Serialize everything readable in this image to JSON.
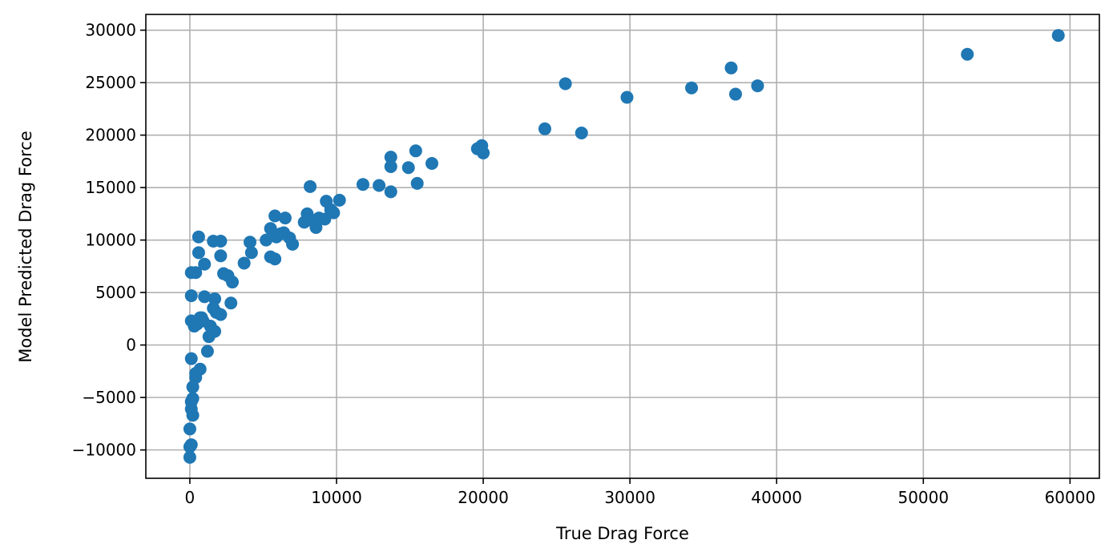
{
  "chart_data": {
    "type": "scatter",
    "xlabel": "True Drag Force",
    "ylabel": "Model Predicted Drag Force",
    "xlim": [
      -3000,
      62000
    ],
    "ylim": [
      -12700,
      31500
    ],
    "x_ticks": [
      0,
      10000,
      20000,
      30000,
      40000,
      50000,
      60000
    ],
    "y_ticks": [
      -10000,
      -5000,
      0,
      5000,
      10000,
      15000,
      20000,
      25000,
      30000
    ],
    "grid": true,
    "marker_color": "#1f77b4",
    "points": [
      [
        59200,
        29500
      ],
      [
        53000,
        27700
      ],
      [
        36900,
        26400
      ],
      [
        38700,
        24700
      ],
      [
        37200,
        23900
      ],
      [
        34200,
        24500
      ],
      [
        29800,
        23600
      ],
      [
        25600,
        24900
      ],
      [
        26700,
        20200
      ],
      [
        24200,
        20600
      ],
      [
        19900,
        19000
      ],
      [
        19600,
        18700
      ],
      [
        20000,
        18300
      ],
      [
        15400,
        18500
      ],
      [
        13700,
        17900
      ],
      [
        13700,
        17000
      ],
      [
        14900,
        16900
      ],
      [
        16500,
        17300
      ],
      [
        15500,
        15400
      ],
      [
        13700,
        14600
      ],
      [
        12900,
        15200
      ],
      [
        11800,
        15300
      ],
      [
        10200,
        13800
      ],
      [
        9800,
        12600
      ],
      [
        9300,
        13700
      ],
      [
        9600,
        12900
      ],
      [
        9200,
        12000
      ],
      [
        8800,
        12100
      ],
      [
        8600,
        11200
      ],
      [
        8300,
        11900
      ],
      [
        8000,
        12500
      ],
      [
        7800,
        11700
      ],
      [
        8200,
        15100
      ],
      [
        7000,
        9600
      ],
      [
        6800,
        10200
      ],
      [
        6500,
        12100
      ],
      [
        6400,
        10700
      ],
      [
        5800,
        12300
      ],
      [
        5500,
        11100
      ],
      [
        5900,
        10300
      ],
      [
        6200,
        10600
      ],
      [
        5800,
        8200
      ],
      [
        5500,
        8400
      ],
      [
        5200,
        10000
      ],
      [
        4200,
        8800
      ],
      [
        4100,
        9800
      ],
      [
        3700,
        7800
      ],
      [
        2900,
        6000
      ],
      [
        2600,
        6600
      ],
      [
        2300,
        6800
      ],
      [
        2800,
        4000
      ],
      [
        2100,
        9900
      ],
      [
        2100,
        8500
      ],
      [
        1600,
        9900
      ],
      [
        2100,
        2900
      ],
      [
        1800,
        3100
      ],
      [
        1700,
        4400
      ],
      [
        1600,
        3500
      ],
      [
        1700,
        1300
      ],
      [
        1300,
        800
      ],
      [
        1400,
        1800
      ],
      [
        1200,
        -600
      ],
      [
        1000,
        7700
      ],
      [
        1000,
        4600
      ],
      [
        800,
        2600
      ],
      [
        900,
        2300
      ],
      [
        600,
        10300
      ],
      [
        600,
        8800
      ],
      [
        400,
        6900
      ],
      [
        100,
        6900
      ],
      [
        100,
        4700
      ],
      [
        100,
        2300
      ],
      [
        300,
        1800
      ],
      [
        500,
        2000
      ],
      [
        700,
        2600
      ],
      [
        100,
        -1300
      ],
      [
        700,
        -2300
      ],
      [
        400,
        -2700
      ],
      [
        400,
        -3100
      ],
      [
        200,
        -4000
      ],
      [
        200,
        -5100
      ],
      [
        100,
        -5400
      ],
      [
        100,
        -6100
      ],
      [
        200,
        -6700
      ],
      [
        0,
        -8000
      ],
      [
        100,
        -9500
      ],
      [
        0,
        -9700
      ],
      [
        0,
        -10700
      ]
    ]
  }
}
